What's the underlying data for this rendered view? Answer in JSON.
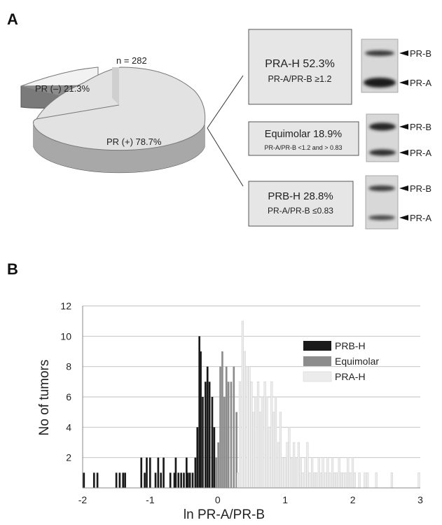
{
  "panel_a": {
    "label": "A",
    "n_label": "n = 282",
    "pie": {
      "neg_label": "PR (–) 21.3%",
      "pos_label": "PR (+) 78.7%",
      "neg_pct": 21.3,
      "pos_pct": 78.7
    },
    "boxes": [
      {
        "title": "PRA-H 52.3%",
        "sub": "PR-A/PR-B ≥1.2"
      },
      {
        "title": "Equimolar 18.9%",
        "sub": "PR-A/PR-B <1.2 and > 0.83"
      },
      {
        "title": "PRB-H 28.8%",
        "sub": "PR-A/PR-B ≤0.83"
      }
    ],
    "blot_labels": {
      "b": "PR-B",
      "a": "PR-A"
    }
  },
  "panel_b": {
    "label": "B"
  },
  "chart_data": {
    "type": "bar",
    "ylabel": "No of  tumors",
    "xlabel": "ln PR-A/PR-B",
    "ylim": [
      0,
      12
    ],
    "xlim": [
      -2,
      3
    ],
    "yticks": [
      "2",
      "4",
      "6",
      "8",
      "10",
      "12"
    ],
    "xticks": [
      "-2",
      "-1",
      "0",
      "1",
      "2",
      "3"
    ],
    "grid": true,
    "legend_position": "top-right",
    "colors": {
      "PRB-H": "#1a1a1a",
      "Equimolar": "#8c8c8c",
      "PRA-H": "#ededed"
    },
    "series": [
      {
        "name": "PRB-H",
        "x": [
          -1.98,
          -1.83,
          -1.78,
          -1.5,
          -1.45,
          -1.4,
          -1.37,
          -1.13,
          -1.08,
          -1.05,
          -1.0,
          -0.92,
          -0.88,
          -0.84,
          -0.8,
          -0.7,
          -0.64,
          -0.62,
          -0.58,
          -0.54,
          -0.5,
          -0.46,
          -0.44,
          -0.41,
          -0.37,
          -0.33,
          -0.3,
          -0.27,
          -0.25,
          -0.22,
          -0.18,
          -0.15,
          -0.12,
          -0.08,
          -0.05
        ],
        "y": [
          1,
          1,
          1,
          1,
          1,
          1,
          1,
          2,
          1,
          2,
          2,
          1,
          2,
          1,
          2,
          1,
          1,
          2,
          1,
          1,
          1,
          2,
          1,
          1,
          1,
          2,
          4,
          10,
          9,
          6,
          7,
          8,
          7,
          6,
          4
        ]
      },
      {
        "name": "Equimolar",
        "x": [
          -0.02,
          0.01,
          0.04,
          0.07,
          0.1,
          0.13,
          0.16,
          0.2,
          0.24,
          0.28
        ],
        "y": [
          2,
          3,
          8,
          9,
          6,
          8,
          7,
          7,
          8,
          5
        ]
      },
      {
        "name": "PRA-H",
        "x": [
          0.3,
          0.33,
          0.37,
          0.4,
          0.44,
          0.47,
          0.5,
          0.53,
          0.56,
          0.6,
          0.63,
          0.66,
          0.7,
          0.73,
          0.76,
          0.8,
          0.83,
          0.86,
          0.9,
          0.93,
          0.96,
          1.0,
          1.03,
          1.06,
          1.1,
          1.13,
          1.16,
          1.2,
          1.23,
          1.26,
          1.3,
          1.33,
          1.36,
          1.4,
          1.43,
          1.46,
          1.5,
          1.53,
          1.56,
          1.6,
          1.63,
          1.66,
          1.7,
          1.73,
          1.76,
          1.8,
          1.83,
          1.86,
          1.9,
          1.93,
          1.96,
          2.0,
          2.03,
          2.1,
          2.18,
          2.22,
          2.35,
          2.58,
          2.98
        ],
        "y": [
          1,
          7,
          11,
          9,
          8,
          8,
          7,
          5,
          6,
          7,
          5,
          6,
          7,
          6,
          4,
          7,
          5,
          6,
          3,
          5,
          2,
          2,
          3,
          4,
          2,
          3,
          2,
          3,
          2,
          1,
          2,
          3,
          1,
          2,
          1,
          1,
          2,
          1,
          2,
          1,
          2,
          1,
          2,
          1,
          1,
          2,
          1,
          1,
          1,
          2,
          1,
          2,
          1,
          1,
          1,
          1,
          1,
          1,
          1
        ]
      }
    ]
  }
}
